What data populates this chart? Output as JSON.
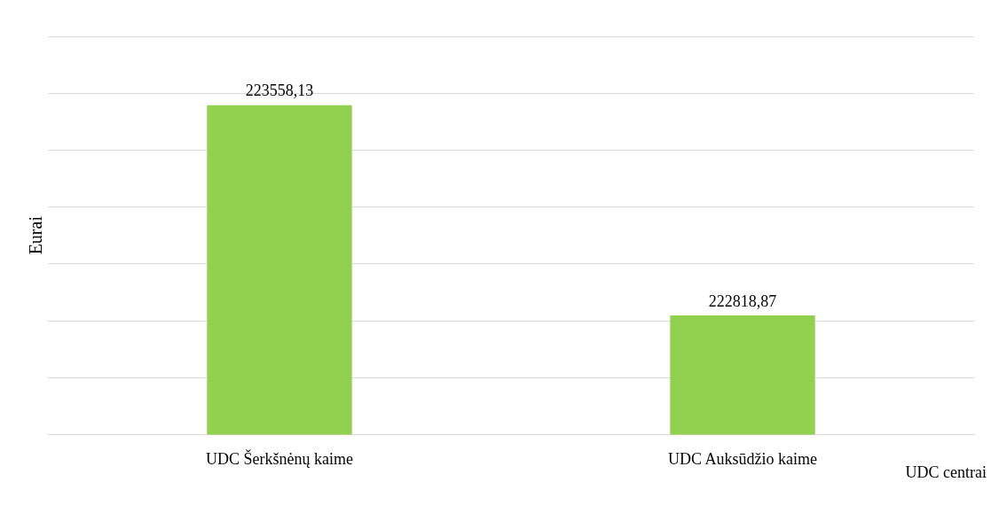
{
  "chart_data": {
    "type": "bar",
    "categories": [
      "UDC Šerkšnėnų kaime",
      "UDC Auksūdžio kaime"
    ],
    "values": [
      223558.13,
      222818.87
    ],
    "value_labels": [
      "223558,13",
      "222818,87"
    ],
    "color": "#92d050",
    "ylim": [
      222400,
      223800
    ],
    "yticks": [
      {
        "value": 222400,
        "label": null
      },
      {
        "value": 222600,
        "label": null
      },
      {
        "value": 222800,
        "label": null
      },
      {
        "value": 223000,
        "label": null
      },
      {
        "value": 223200,
        "label": null
      },
      {
        "value": 223400,
        "label": null
      },
      {
        "value": 223600,
        "label": null
      },
      {
        "value": 223800,
        "label": null
      }
    ],
    "tick_labels": "x",
    "grid": "y",
    "legend": false,
    "xlabel": "UDC centrai",
    "ylabel": "Eurai"
  }
}
